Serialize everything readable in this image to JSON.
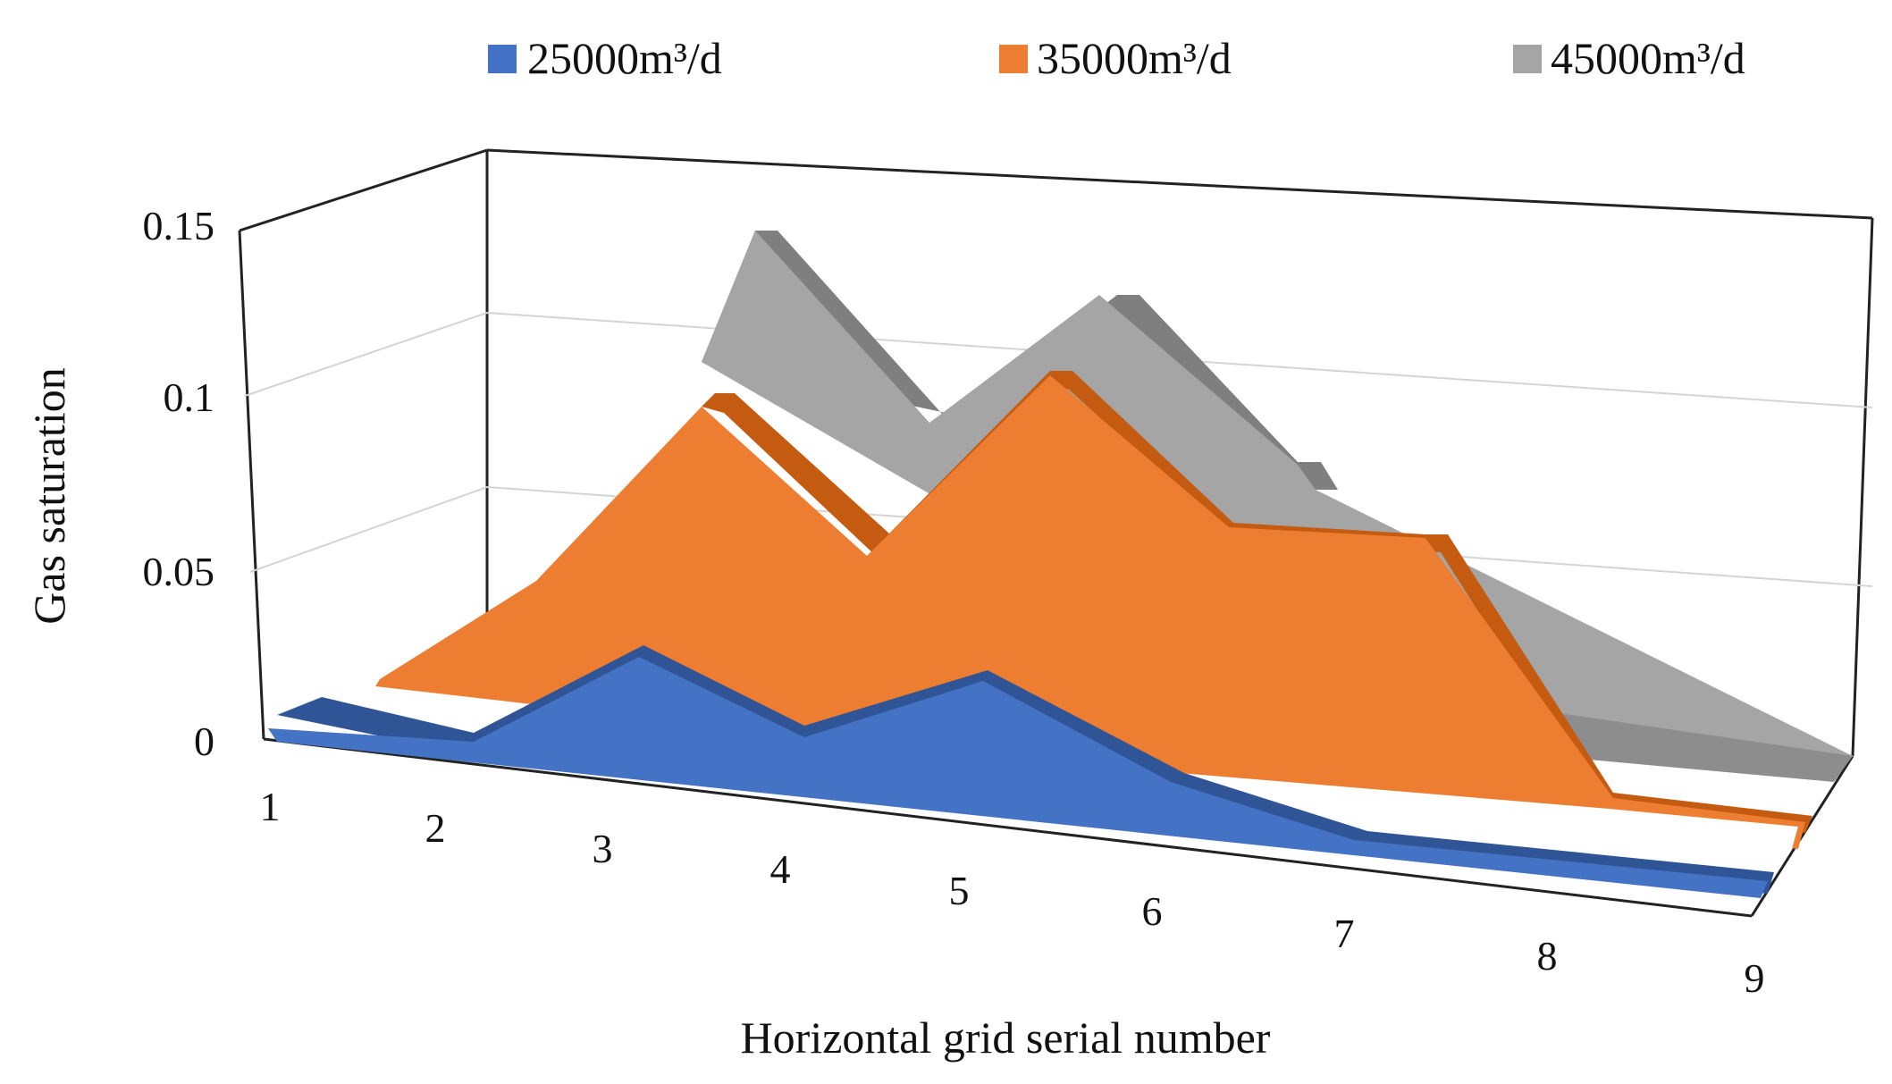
{
  "chart_data": {
    "type": "area",
    "title": "",
    "xlabel": "Horizontal grid serial number",
    "ylabel": "Gas saturation",
    "categories": [
      "1",
      "2",
      "3",
      "4",
      "5",
      "6",
      "7",
      "8",
      "9"
    ],
    "yticks": [
      "0",
      "0.05",
      "0.1",
      "0.15"
    ],
    "ylim": [
      0,
      0.15
    ],
    "grid": true,
    "legend_position": "top",
    "series": [
      {
        "name": "25000m³/d",
        "color": "#4472C4",
        "values": [
          0.002,
          0.001,
          0.03,
          0.012,
          0.03,
          0.008,
          0.002,
          0.001,
          0.0
        ]
      },
      {
        "name": "35000m³/d",
        "color": "#ED7D31",
        "values": [
          0.0,
          0.03,
          0.095,
          0.05,
          0.11,
          0.07,
          0.074,
          0.0,
          0.0
        ]
      },
      {
        "name": "45000m³/d",
        "color": "#A5A5A5",
        "values": [
          0.0,
          0.0,
          0.15,
          0.1,
          0.135,
          0.095,
          0.0,
          0.0,
          0.0
        ]
      }
    ]
  }
}
